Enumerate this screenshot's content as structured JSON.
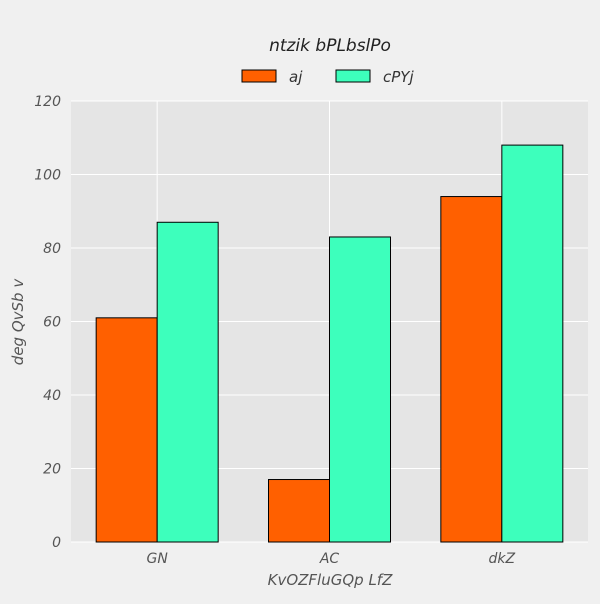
{
  "chart_data": {
    "type": "bar",
    "title": "ntzik bPLbslPo",
    "xlabel": "KvOZFluGQp LfZ",
    "ylabel": "deg QvSb v",
    "categories": [
      "GN",
      "AC",
      "dkZ"
    ],
    "series": [
      {
        "name": "aj",
        "values": [
          61,
          17,
          94
        ],
        "color": "#ff6000"
      },
      {
        "name": "cPYj",
        "values": [
          87,
          83,
          108
        ],
        "color": "#3dffbc"
      }
    ],
    "ylim": [
      0,
      120
    ],
    "yticks": [
      0,
      20,
      40,
      60,
      80,
      100,
      120
    ],
    "grid": true,
    "legend_position": "top-center",
    "background_color": "#e5e5e5",
    "grid_color": "#ffffff",
    "edge_color": "#000000"
  }
}
